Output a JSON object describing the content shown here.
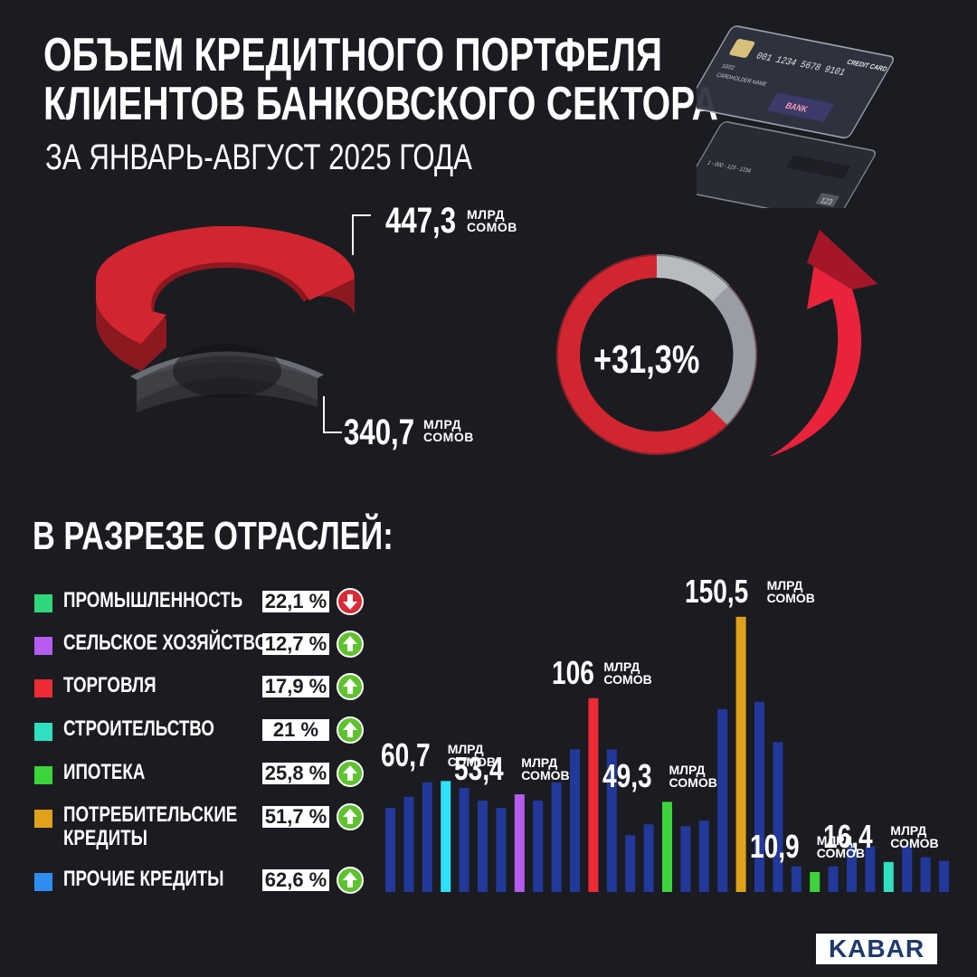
{
  "header": {
    "title_line1": "ОБЪЕМ КРЕДИТНОГО ПОРТФЕЛЯ",
    "title_line2": "КЛИЕНТОВ БАНКОВСКОГО СЕКТОРА",
    "subtitle": "ЗА ЯНВАРЬ-АВГУСТ 2025 ГОДА"
  },
  "card_illustration": {
    "number": "001 1234 5678 9101",
    "label": "CREDIT CARD",
    "holder": "CARDHOLDER NAME",
    "expiry": "10/22",
    "bank": "BANK",
    "phone": "1 - 000 - 123 - 1234",
    "cvv": "123"
  },
  "portfolio": {
    "current_value": "447,3",
    "previous_value": "340,7",
    "unit_line1": "МЛРД",
    "unit_line2": "СОМОВ",
    "growth": "+31,3%"
  },
  "chart_data": {
    "type": "bar",
    "section_title": "В РАЗРЕЗЕ ОТРАСЛЕЙ:",
    "legend": [
      {
        "name": "ПРОМЫШЛЕННОСТЬ",
        "change": "22,1 %",
        "direction": "down",
        "color": "#2fd67a"
      },
      {
        "name": "СЕЛЬСКОЕ ХОЗЯЙСТВО",
        "change": "12,7 %",
        "direction": "up",
        "color": "#b65cf0"
      },
      {
        "name": "ТОРГОВЛЯ",
        "change": "17,9 %",
        "direction": "up",
        "color": "#ee2b35"
      },
      {
        "name": "СТРОИТЕЛЬСТВО",
        "change": "21 %",
        "direction": "up",
        "color": "#2fe0c0"
      },
      {
        "name": "ИПОТЕКА",
        "change": "25,8 %",
        "direction": "up",
        "color": "#3bd43b"
      },
      {
        "name": "ПОТРЕБИТЕЛЬСКИЕ КРЕДИТЫ",
        "change": "51,7 %",
        "direction": "up",
        "color": "#e0a21a"
      },
      {
        "name": "ПРОЧИЕ КРЕДИТЫ",
        "change": "62,6 %",
        "direction": "up",
        "color": "#2e8ef0"
      }
    ],
    "bars": [
      {
        "value": 46,
        "kind": "decor"
      },
      {
        "value": 52,
        "kind": "decor"
      },
      {
        "value": 60,
        "kind": "decor"
      },
      {
        "value": 60.7,
        "kind": "highlight",
        "color": "#2fe0ff",
        "label": "60,7"
      },
      {
        "value": 57,
        "kind": "decor"
      },
      {
        "value": 50,
        "kind": "decor"
      },
      {
        "value": 46,
        "kind": "decor"
      },
      {
        "value": 53.4,
        "kind": "highlight",
        "color": "#b65cf0",
        "label": "53,4"
      },
      {
        "value": 50,
        "kind": "decor"
      },
      {
        "value": 60,
        "kind": "decor"
      },
      {
        "value": 78,
        "kind": "decor"
      },
      {
        "value": 106,
        "kind": "highlight",
        "color": "#ee2b35",
        "label": "106"
      },
      {
        "value": 78,
        "kind": "decor"
      },
      {
        "value": 31,
        "kind": "decor"
      },
      {
        "value": 37,
        "kind": "decor"
      },
      {
        "value": 49.3,
        "kind": "highlight",
        "color": "#3bd43b",
        "label": "49,3"
      },
      {
        "value": 36,
        "kind": "decor"
      },
      {
        "value": 39,
        "kind": "decor"
      },
      {
        "value": 100,
        "kind": "decor"
      },
      {
        "value": 150.5,
        "kind": "highlight",
        "color": "#e0a21a",
        "label": "150,5"
      },
      {
        "value": 104,
        "kind": "decor"
      },
      {
        "value": 82,
        "kind": "decor"
      },
      {
        "value": 14,
        "kind": "decor"
      },
      {
        "value": 10.9,
        "kind": "highlight",
        "color": "#3bd43b",
        "label": "10,9"
      },
      {
        "value": 14,
        "kind": "decor"
      },
      {
        "value": 25,
        "kind": "decor"
      },
      {
        "value": 25,
        "kind": "decor"
      },
      {
        "value": 16.4,
        "kind": "highlight",
        "color": "#2fe0c0",
        "label": "16,4"
      },
      {
        "value": 25,
        "kind": "decor"
      },
      {
        "value": 19,
        "kind": "decor"
      },
      {
        "value": 17,
        "kind": "decor"
      }
    ],
    "unit_line1": "МЛРД",
    "unit_line2": "СОМОВ",
    "decor_color": "#22389a"
  },
  "brand": {
    "logo": "KABAR"
  }
}
